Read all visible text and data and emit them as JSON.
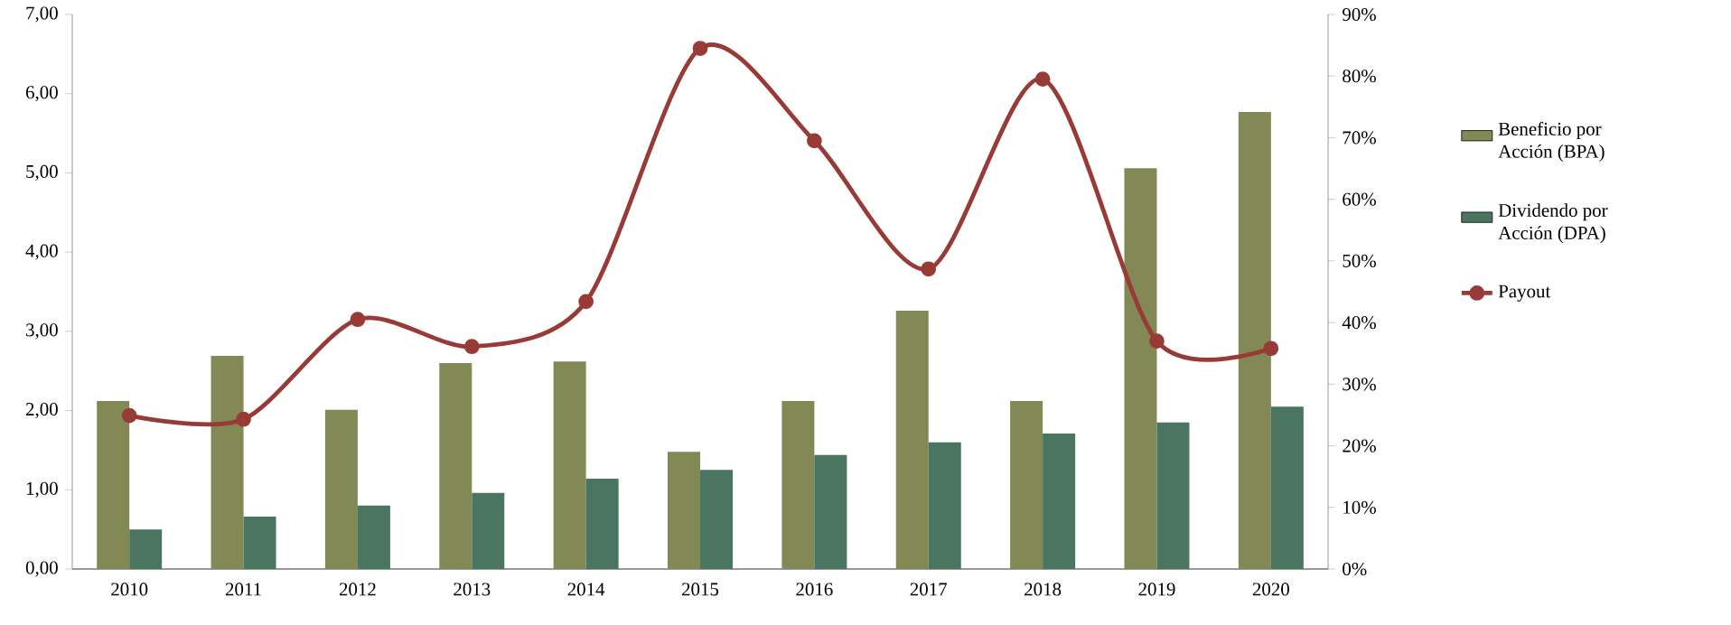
{
  "chart_data": {
    "type": "bar",
    "categories": [
      "2010",
      "2011",
      "2012",
      "2013",
      "2014",
      "2015",
      "2016",
      "2017",
      "2018",
      "2019",
      "2020"
    ],
    "series": [
      {
        "name": "Beneficio por Acción (BPA)",
        "color": "#838954",
        "values": [
          2.12,
          2.69,
          2.01,
          2.6,
          2.62,
          1.48,
          2.12,
          3.26,
          2.12,
          5.06,
          5.77
        ]
      },
      {
        "name": "Dividendo por Acción (DPA)",
        "color": "#4a7561",
        "values": [
          0.5,
          0.66,
          0.8,
          0.96,
          1.14,
          1.25,
          1.44,
          1.6,
          1.71,
          1.85,
          2.05
        ]
      },
      {
        "name": "Payout",
        "color": "#983a36",
        "type": "line",
        "axis": "y2",
        "marker": "circle",
        "line_style": "solid",
        "values": [
          24.9,
          24.3,
          40.5,
          36.1,
          43.4,
          84.5,
          69.5,
          48.7,
          79.5,
          37.0,
          35.8
        ]
      }
    ],
    "ylim": [
      0,
      7
    ],
    "yticks": [
      {
        "value": 0,
        "label": "0,00"
      },
      {
        "value": 1,
        "label": "1,00"
      },
      {
        "value": 2,
        "label": "2,00"
      },
      {
        "value": 3,
        "label": "3,00"
      },
      {
        "value": 4,
        "label": "4,00"
      },
      {
        "value": 5,
        "label": "5,00"
      },
      {
        "value": 6,
        "label": "6,00"
      },
      {
        "value": 7,
        "label": "7,00"
      }
    ],
    "y2lim": [
      0,
      90
    ],
    "y2ticks": [
      {
        "value": 0,
        "label": "0%"
      },
      {
        "value": 10,
        "label": "10%"
      },
      {
        "value": 20,
        "label": "20%"
      },
      {
        "value": 30,
        "label": "30%"
      },
      {
        "value": 40,
        "label": "40%"
      },
      {
        "value": 50,
        "label": "50%"
      },
      {
        "value": 60,
        "label": "60%"
      },
      {
        "value": 70,
        "label": "70%"
      },
      {
        "value": 80,
        "label": "80%"
      },
      {
        "value": 90,
        "label": "90%"
      }
    ],
    "legend": "right"
  }
}
